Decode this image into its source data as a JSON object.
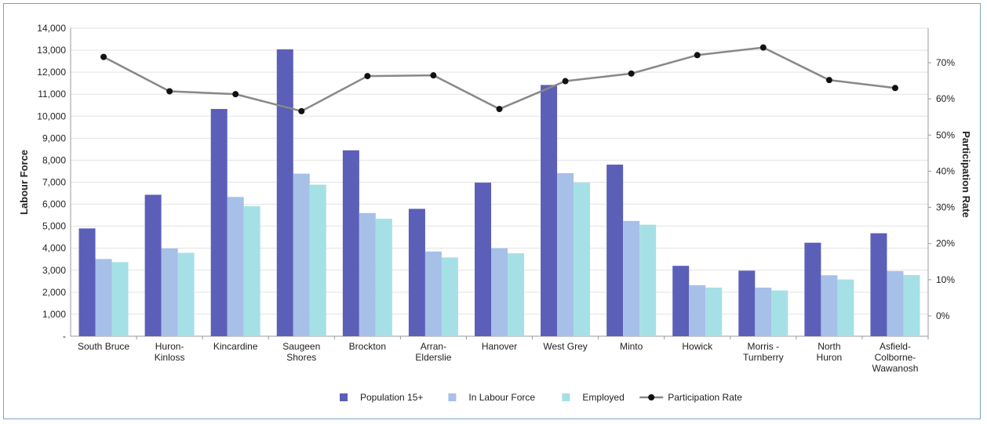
{
  "chart_data": {
    "type": "bar",
    "categories": [
      [
        "South Bruce"
      ],
      [
        "Huron-",
        "Kinloss"
      ],
      [
        "Kincardine"
      ],
      [
        "Saugeen",
        "Shores"
      ],
      [
        "Brockton"
      ],
      [
        "Arran-",
        "Elderslie"
      ],
      [
        "Hanover"
      ],
      [
        "West Grey"
      ],
      [
        "Minto"
      ],
      [
        "Howick"
      ],
      [
        "Morris -",
        "Turnberry"
      ],
      [
        "North",
        "Huron"
      ],
      [
        "Asfield-",
        "Colborne-",
        "Wawanosh"
      ]
    ],
    "series": [
      {
        "name": "Population 15+",
        "type": "bar",
        "axis": "left",
        "color": "#5b5fb8",
        "values": [
          4900,
          6430,
          10330,
          13040,
          8450,
          5790,
          6980,
          11420,
          7800,
          3200,
          2980,
          4250,
          4680
        ]
      },
      {
        "name": "In Labour Force",
        "type": "bar",
        "axis": "left",
        "color": "#a6c0e8",
        "values": [
          3510,
          3990,
          6330,
          7390,
          5600,
          3850,
          4000,
          7410,
          5240,
          2320,
          2210,
          2770,
          2960
        ]
      },
      {
        "name": "Employed",
        "type": "bar",
        "axis": "left",
        "color": "#a5e0e6",
        "values": [
          3370,
          3790,
          5910,
          6890,
          5340,
          3580,
          3770,
          6980,
          5070,
          2210,
          2080,
          2580,
          2780
        ]
      },
      {
        "name": "Participation Rate",
        "type": "line",
        "axis": "right",
        "color": "#888888",
        "values": [
          71.6,
          62.1,
          61.3,
          56.6,
          66.3,
          66.5,
          57.2,
          64.9,
          67.0,
          72.1,
          74.2,
          65.2,
          63.0
        ]
      }
    ],
    "ylabel": "Labour Force",
    "y2label": "Participation Rate",
    "ylim": [
      0,
      14000
    ],
    "ytick_step": 1000,
    "yticks": [
      "-",
      "1,000",
      "2,000",
      "3,000",
      "4,000",
      "5,000",
      "6,000",
      "7,000",
      "8,000",
      "9,000",
      "10,000",
      "11,000",
      "12,000",
      "13,000",
      "14,000"
    ],
    "y2ticks": [
      "0%",
      "10%",
      "20%",
      "30%",
      "40%",
      "50%",
      "60%",
      "70%"
    ],
    "y2lim_ref": {
      "zero_value": 0,
      "seventy_value": 70
    },
    "grid": true,
    "legend": "bottom-center"
  }
}
